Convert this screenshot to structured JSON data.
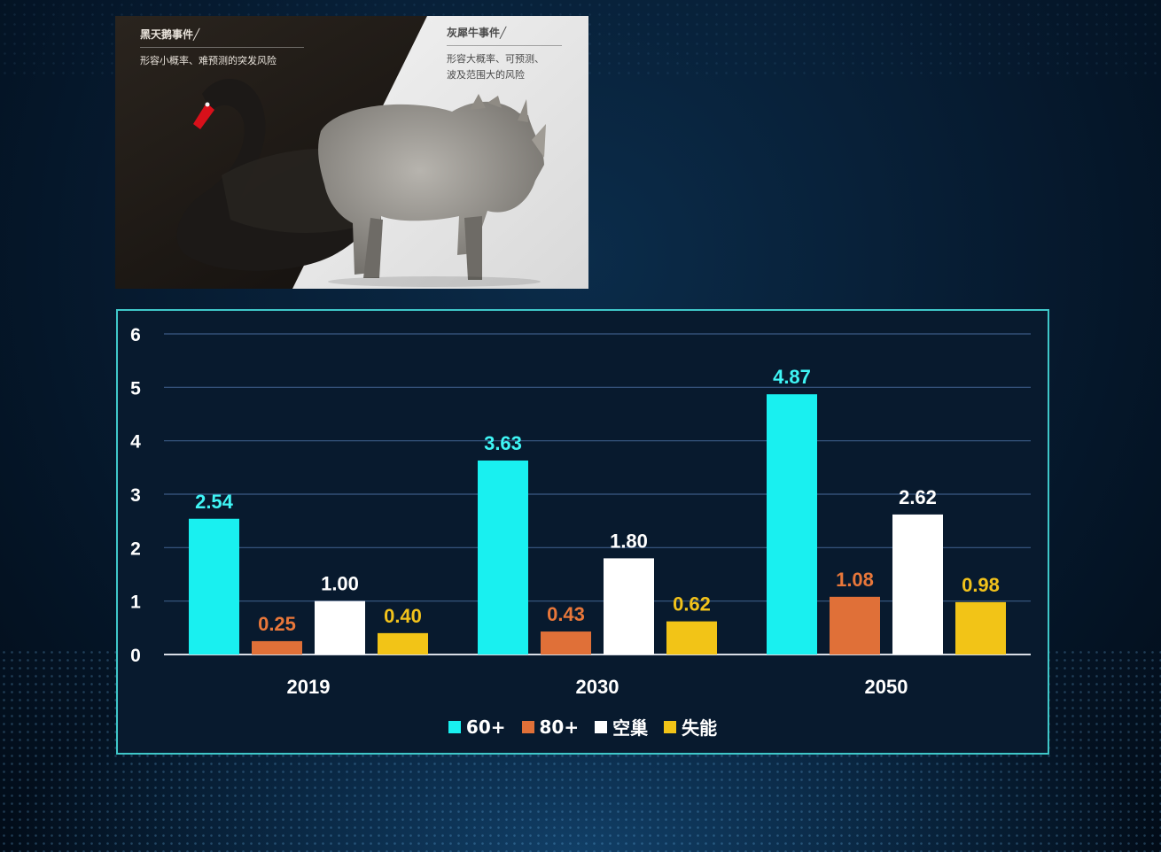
{
  "illustration": {
    "swan": {
      "title": "黑天鹅事件╱",
      "text": "形容小概率、难预测的突发风险"
    },
    "rhino": {
      "title": "灰犀牛事件╱",
      "text_lines": [
        "形容大概率、可预测、",
        "波及范围大的风险"
      ]
    }
  },
  "chart_data": {
    "type": "bar",
    "categories": [
      "2019",
      "2030",
      "2050"
    ],
    "series": [
      {
        "name": "60+",
        "values": [
          2.54,
          3.63,
          4.87
        ],
        "color": "#19f0f0",
        "label_color": "#3ff5f5"
      },
      {
        "name": "80+",
        "values": [
          0.25,
          0.43,
          1.08
        ],
        "color": "#e07038",
        "label_color": "#e8773a"
      },
      {
        "name": "空巢",
        "values": [
          1.0,
          1.8,
          2.62
        ],
        "color": "#ffffff",
        "label_color": "#ffffff"
      },
      {
        "name": "失能",
        "values": [
          0.4,
          0.62,
          0.98
        ],
        "color": "#f2c417",
        "label_color": "#f2c21b"
      }
    ],
    "value_labels": [
      [
        "2.54",
        "3.63",
        "4.87"
      ],
      [
        "0.25",
        "0.43",
        "1.08"
      ],
      [
        "1.00",
        "1.80",
        "2.62"
      ],
      [
        "0.40",
        "0.62",
        "0.98"
      ]
    ],
    "yticks": [
      "0",
      "1",
      "2",
      "3",
      "4",
      "5",
      "6"
    ],
    "ylim": [
      0,
      6
    ],
    "grid": true,
    "legend_position": "bottom-center"
  }
}
